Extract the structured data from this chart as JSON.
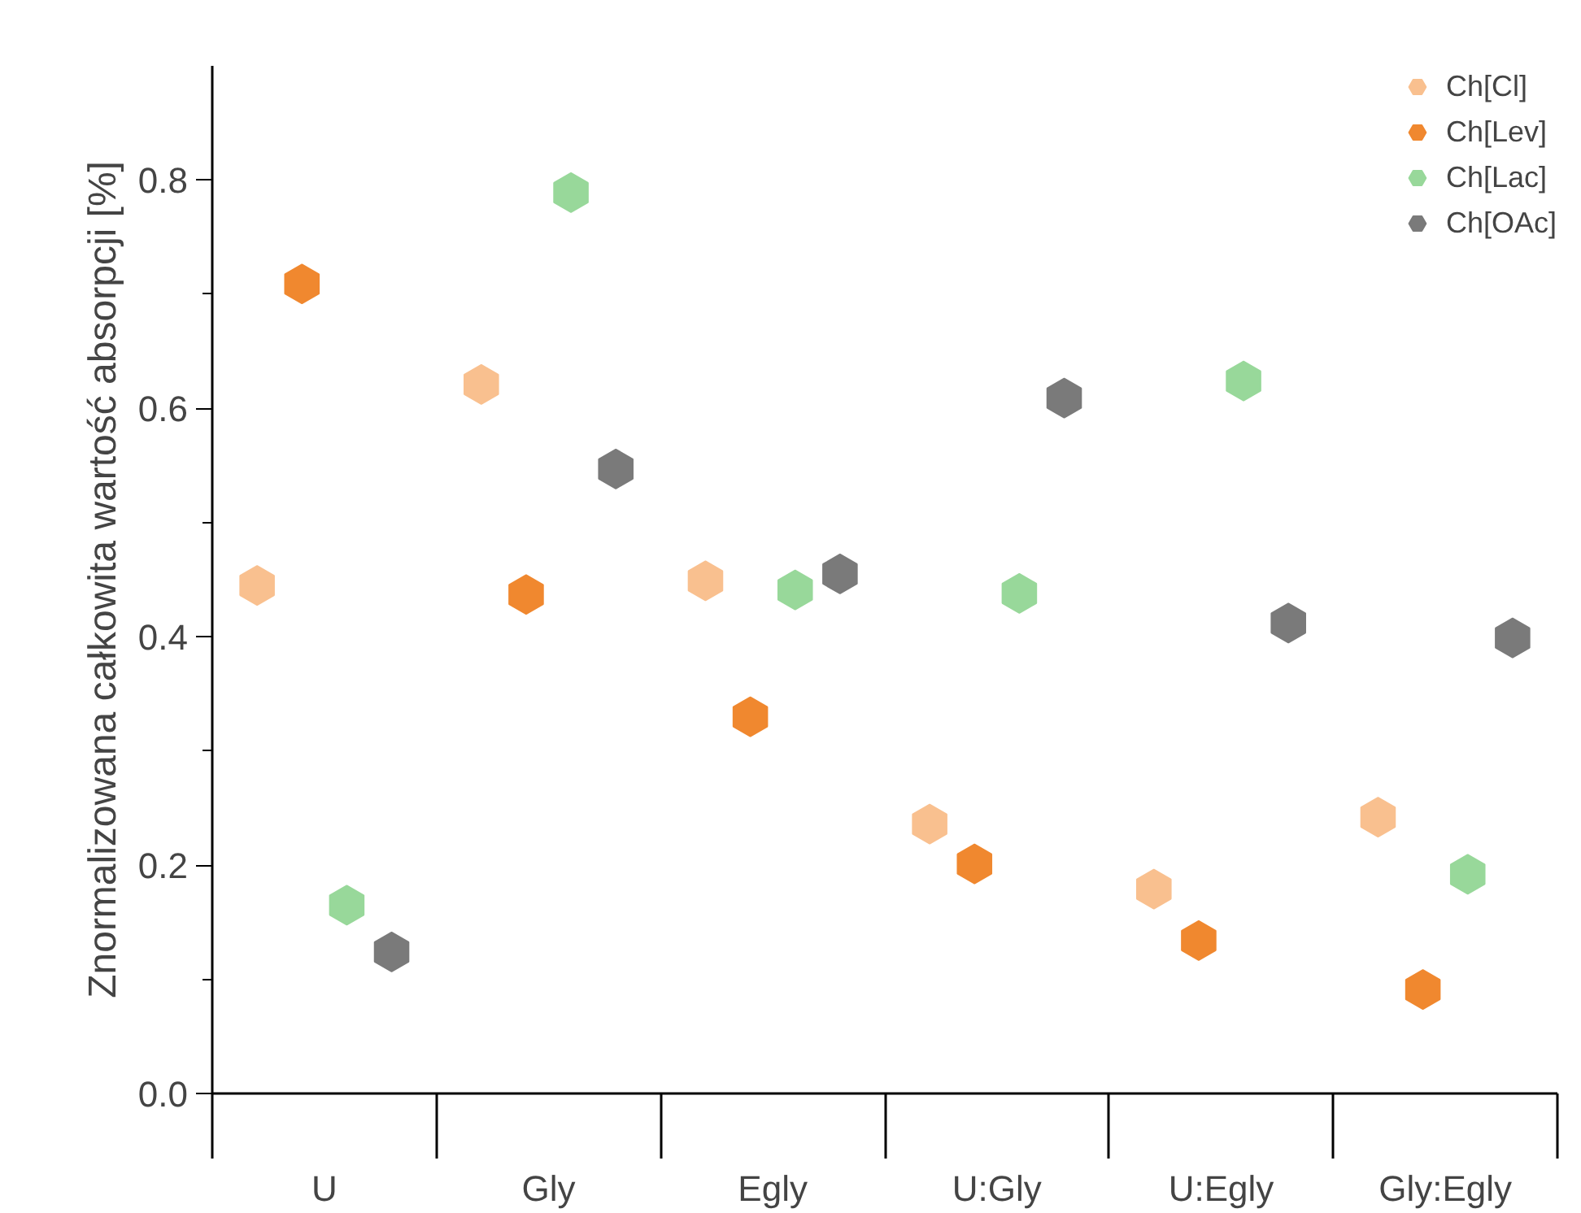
{
  "chart_data": {
    "type": "scatter",
    "ylabel": "Znormalizowana całkowita wartość absorpcji [%]",
    "categories": [
      "U",
      "Gly",
      "Egly",
      "U:Gly",
      "U:Egly",
      "Gly:Egly"
    ],
    "series": [
      {
        "name": "Ch[Cl]",
        "color": "#f9c08f",
        "values": [
          0.445,
          0.621,
          0.449,
          0.236,
          0.179,
          0.242
        ]
      },
      {
        "name": "Ch[Lev]",
        "color": "#f0882f",
        "values": [
          0.709,
          0.437,
          0.33,
          0.201,
          0.134,
          0.091
        ]
      },
      {
        "name": "Ch[Lac]",
        "color": "#98d89a",
        "values": [
          0.165,
          0.789,
          0.441,
          0.438,
          0.624,
          0.192
        ]
      },
      {
        "name": "Ch[OAc]",
        "color": "#7a7a7a",
        "values": [
          0.124,
          0.547,
          0.455,
          0.609,
          0.412,
          0.399
        ]
      }
    ],
    "ylim": [
      0,
      0.9
    ],
    "yticks": [
      {
        "value": 0,
        "label": "0.0"
      },
      {
        "value": 0.1,
        "label": null
      },
      0.2,
      {
        "value": 0.3,
        "label": null
      },
      0.4,
      {
        "value": 0.5,
        "label": null
      },
      0.6,
      {
        "value": 0.7,
        "label": null
      },
      0.8
    ],
    "legend": "top right",
    "grid": false
  }
}
